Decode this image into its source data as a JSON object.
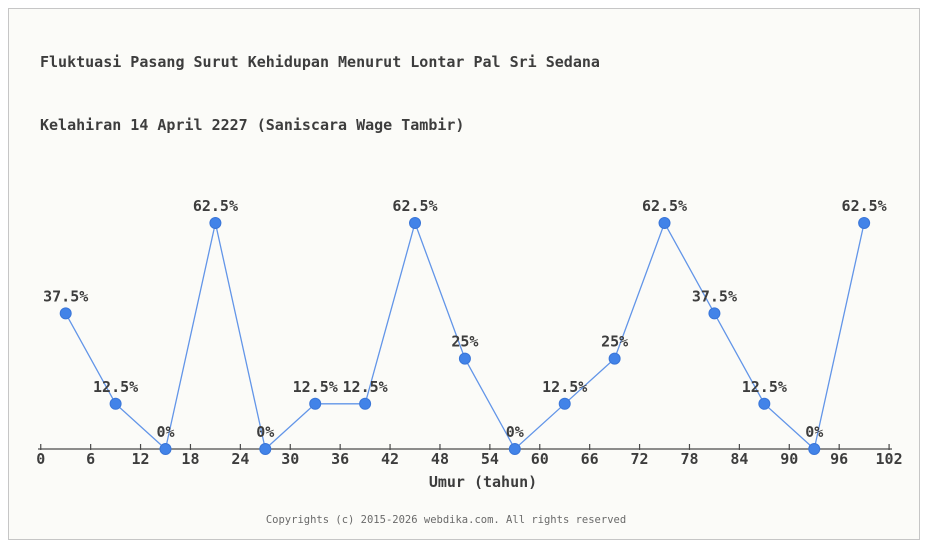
{
  "title": {
    "line1": "Fluktuasi Pasang Surut Kehidupan Menurut Lontar Pal Sri Sedana",
    "line2": "Kelahiran 14 April 2227 (Saniscara Wage Tambir)"
  },
  "footer": "Copyrights (c) 2015-2026 webdika.com. All rights reserved",
  "chart_data": {
    "type": "line",
    "title": "Fluktuasi Pasang Surut Kehidupan Menurut Lontar Pal Sri Sedana Kelahiran 14 April 2227 (Saniscara Wage Tambir)",
    "xlabel": "Umur (tahun)",
    "ylabel": "",
    "x": [
      3,
      9,
      15,
      21,
      27,
      33,
      39,
      45,
      51,
      57,
      63,
      69,
      75,
      81,
      87,
      93,
      99
    ],
    "values": [
      37.5,
      12.5,
      0,
      62.5,
      0,
      12.5,
      12.5,
      62.5,
      25,
      0,
      12.5,
      25,
      62.5,
      37.5,
      12.5,
      0,
      62.5
    ],
    "point_labels": [
      "37.5%",
      "12.5%",
      "0%",
      "62.5%",
      "0%",
      "12.5%",
      "12.5%",
      "62.5%",
      "25%",
      "0%",
      "12.5%",
      "25%",
      "62.5%",
      "37.5%",
      "12.5%",
      "0%",
      "62.5%"
    ],
    "x_ticks": [
      0,
      6,
      12,
      18,
      24,
      30,
      36,
      42,
      48,
      54,
      60,
      66,
      72,
      78,
      84,
      90,
      96,
      102
    ],
    "xlim": [
      0,
      102
    ],
    "ylim": [
      0,
      70
    ],
    "grid": false,
    "legend": "none",
    "colors": {
      "marker": "#4283e8",
      "marker_edge": "#3a76d8",
      "line": "#6295e8",
      "axis": "#4a4a4a",
      "label": "#3d3d3d",
      "footer_text": "#6a6a6a"
    }
  }
}
